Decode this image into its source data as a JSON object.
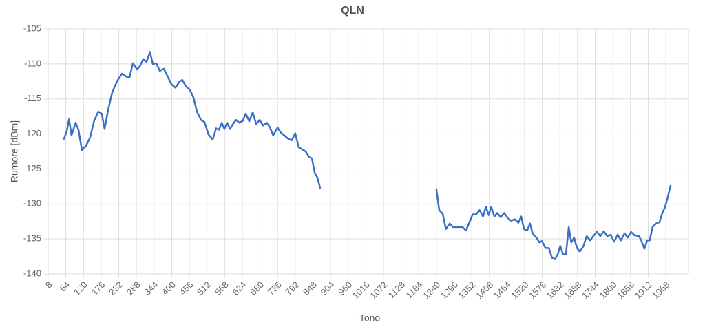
{
  "chart_data": {
    "type": "line",
    "title": "QLN",
    "x_label": "Tono",
    "y_label": "Rumore [dBm]",
    "xlim": [
      8,
      2040
    ],
    "ylim": [
      -140,
      -105
    ],
    "xticks": [
      8,
      64,
      120,
      176,
      232,
      288,
      344,
      400,
      456,
      512,
      568,
      624,
      680,
      736,
      792,
      848,
      904,
      960,
      1016,
      1072,
      1128,
      1184,
      1240,
      1296,
      1352,
      1408,
      1464,
      1520,
      1576,
      1632,
      1688,
      1744,
      1800,
      1856,
      1912,
      1968
    ],
    "yticks": [
      -140,
      -135,
      -130,
      -125,
      -120,
      -115,
      -110,
      -105
    ],
    "grid": true,
    "x": [
      58,
      67,
      74,
      82,
      95,
      104,
      115,
      128,
      141,
      154,
      167,
      178,
      187,
      198,
      211,
      226,
      242,
      255,
      266,
      277,
      290,
      299,
      310,
      320,
      331,
      340,
      351,
      362,
      375,
      386,
      399,
      412,
      425,
      434,
      445,
      458,
      469,
      480,
      493,
      504,
      517,
      530,
      541,
      550,
      559,
      567,
      576,
      585,
      594,
      604,
      615,
      626,
      635,
      646,
      657,
      668,
      679,
      690,
      701,
      711,
      722,
      736,
      746,
      757,
      770,
      781,
      792,
      803,
      814,
      825,
      836,
      845,
      854,
      862,
      871,
      1050,
      1240,
      1249,
      1260,
      1270,
      1282,
      1293,
      1308,
      1323,
      1334,
      1344,
      1355,
      1366,
      1377,
      1388,
      1397,
      1406,
      1414,
      1424,
      1433,
      1444,
      1455,
      1466,
      1477,
      1489,
      1500,
      1509,
      1518,
      1528,
      1537,
      1546,
      1557,
      1567,
      1575,
      1586,
      1597,
      1607,
      1616,
      1625,
      1633,
      1642,
      1651,
      1660,
      1668,
      1677,
      1686,
      1695,
      1706,
      1717,
      1728,
      1738,
      1749,
      1760,
      1771,
      1782,
      1793,
      1804,
      1815,
      1826,
      1837,
      1847,
      1858,
      1869,
      1883,
      1891,
      1900,
      1909,
      1917,
      1926,
      1937,
      1948,
      1957,
      1966,
      1975,
      1983
    ],
    "series": [
      {
        "name": "QLN",
        "color": "#3a6fc4",
        "values": [
          -120.7,
          -119.6,
          -117.9,
          -120.2,
          -118.4,
          -119.4,
          -122.3,
          -121.7,
          -120.5,
          -118.1,
          -116.8,
          -117.1,
          -119.3,
          -116.6,
          -114.1,
          -112.5,
          -111.4,
          -111.8,
          -111.9,
          -109.9,
          -110.8,
          -110.3,
          -109.3,
          -109.7,
          -108.3,
          -110.0,
          -109.9,
          -111.0,
          -110.7,
          -111.7,
          -112.9,
          -113.4,
          -112.5,
          -112.3,
          -113.2,
          -113.7,
          -114.8,
          -116.8,
          -118.0,
          -118.3,
          -120.1,
          -120.8,
          -119.2,
          -119.4,
          -118.4,
          -119.3,
          -118.4,
          -119.3,
          -118.6,
          -118.0,
          -118.4,
          -118.1,
          -117.1,
          -118.2,
          -116.9,
          -118.6,
          -118.0,
          -118.8,
          -118.4,
          -119.0,
          -120.2,
          -119.1,
          -119.8,
          -120.2,
          -120.7,
          -120.9,
          -119.9,
          -121.9,
          -122.2,
          -122.5,
          -123.3,
          -123.5,
          -125.6,
          -126.2,
          -127.7,
          null,
          -127.9,
          -130.9,
          -131.4,
          -133.6,
          -132.8,
          -133.3,
          -133.3,
          -133.3,
          -133.8,
          -132.7,
          -131.5,
          -131.5,
          -130.9,
          -131.8,
          -130.4,
          -131.6,
          -130.4,
          -131.8,
          -131.3,
          -131.9,
          -131.3,
          -132.0,
          -132.4,
          -132.2,
          -132.7,
          -131.8,
          -133.6,
          -133.8,
          -132.8,
          -134.3,
          -134.8,
          -135.5,
          -135.3,
          -136.3,
          -136.3,
          -137.7,
          -137.9,
          -137.2,
          -136.0,
          -137.2,
          -137.2,
          -133.3,
          -135.5,
          -134.8,
          -136.3,
          -136.8,
          -136.1,
          -134.6,
          -135.2,
          -134.6,
          -134.0,
          -134.6,
          -133.9,
          -134.6,
          -134.4,
          -135.4,
          -134.4,
          -135.2,
          -134.2,
          -134.8,
          -134.0,
          -134.5,
          -134.6,
          -135.3,
          -136.4,
          -135.2,
          -135.2,
          -133.3,
          -132.8,
          -132.6,
          -131.3,
          -130.4,
          -128.9,
          -127.4
        ]
      }
    ]
  }
}
